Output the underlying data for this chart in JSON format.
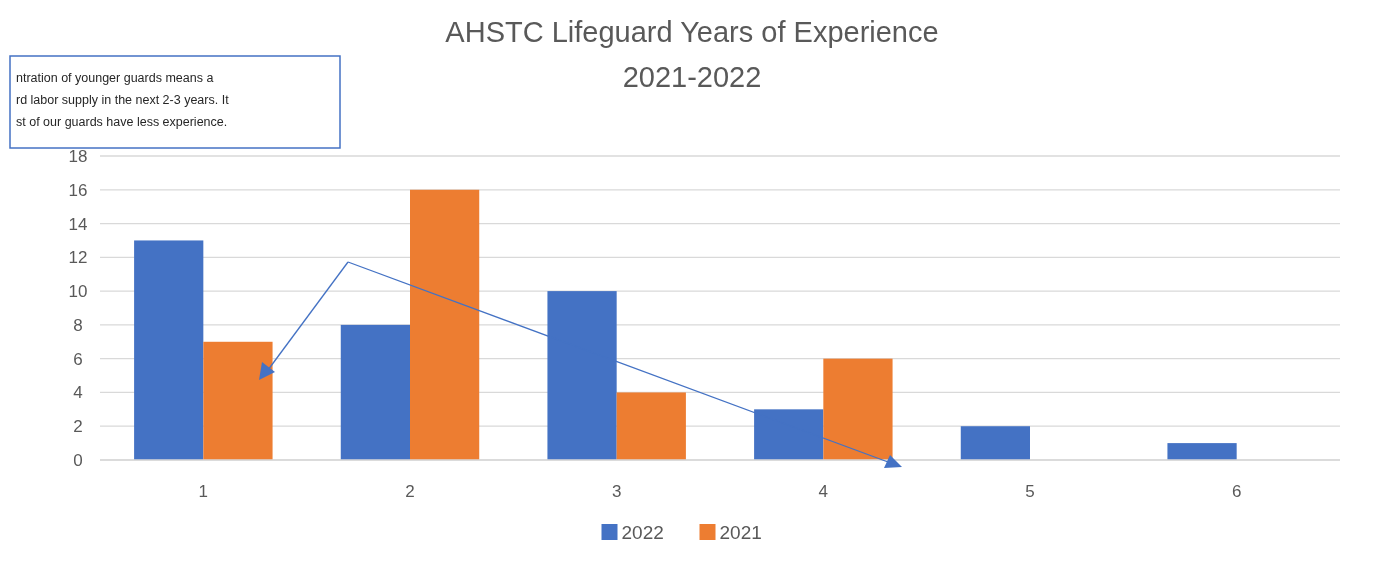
{
  "chart_data": {
    "type": "bar",
    "title": "AHSTC Lifeguard Years of Experience\n2021-2022",
    "categories": [
      "1",
      "2",
      "3",
      "4",
      "5",
      "6"
    ],
    "series": [
      {
        "name": "2022",
        "color": "#4472c4",
        "values": [
          13,
          8,
          10,
          3,
          2,
          1
        ]
      },
      {
        "name": "2021",
        "color": "#ed7d31",
        "values": [
          7,
          16,
          4,
          6,
          0,
          0
        ]
      }
    ],
    "ylim": [
      0,
      18
    ],
    "yticks": [
      0,
      2,
      4,
      6,
      8,
      10,
      12,
      14,
      16,
      18
    ],
    "grid": "y",
    "legend": "bottom",
    "annotations": [
      "ntration of younger guards means a\nrd labor supply in the next 2-3 years. It\nst of our guards have less experience."
    ]
  }
}
